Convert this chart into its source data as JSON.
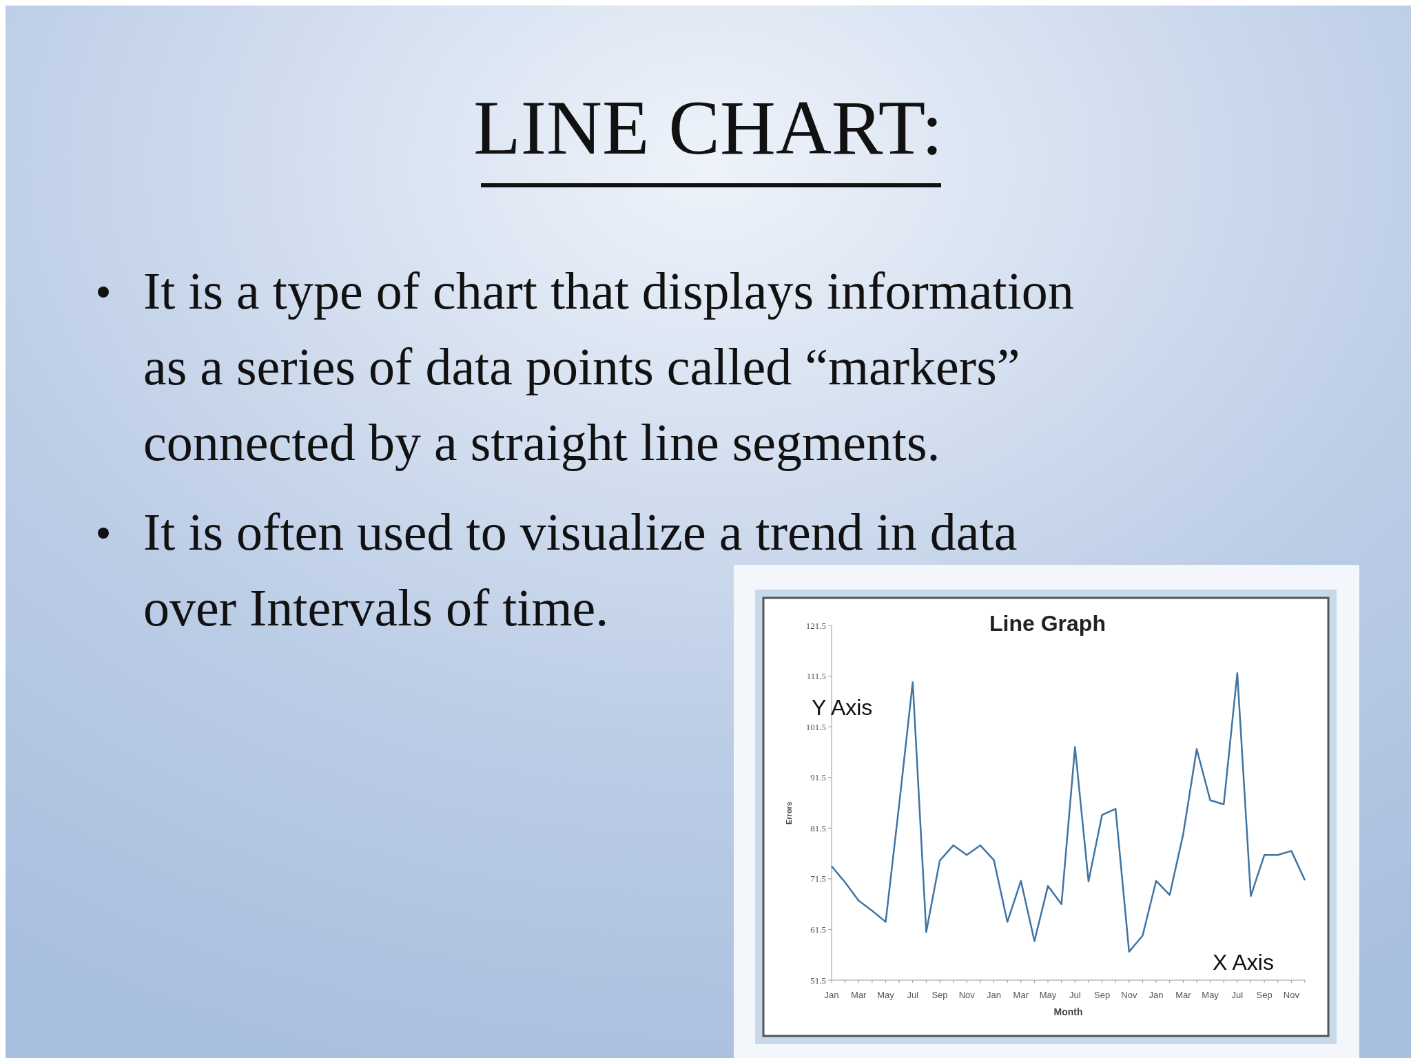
{
  "chart_data": {
    "type": "line",
    "title": "Line Graph",
    "xlabel": "Month",
    "ylabel": "Errors",
    "categories": [
      "Jan",
      null,
      "Mar",
      null,
      "May",
      null,
      "Jul",
      null,
      "Sep",
      null,
      "Nov",
      null,
      "Jan",
      null,
      "Mar",
      null,
      "May",
      null,
      "Jul",
      null,
      "Sep",
      null,
      "Nov",
      null,
      "Jan",
      null,
      "Mar",
      null,
      "May",
      null,
      "Jul",
      null,
      "Sep",
      null,
      "Nov",
      null
    ],
    "series": [
      {
        "color": "#3f74a3",
        "values": [
          74.0,
          70.8,
          67.2,
          65.2,
          63.0,
          86.2,
          110.3,
          61.0,
          75.1,
          78.1,
          76.2,
          78.1,
          75.2,
          63.0,
          71.1,
          59.2,
          70.1,
          66.5,
          97.5,
          71.0,
          84.1,
          85.3,
          57.1,
          60.3,
          71.1,
          68.3,
          80.3,
          97.1,
          87.0,
          86.2,
          112.1,
          68.1,
          76.2,
          76.2,
          77.0,
          71.2
        ]
      }
    ],
    "ylim": [
      51.5,
      121.5
    ],
    "yticks": [
      51.5,
      61.5,
      71.5,
      81.5,
      91.5,
      101.5,
      111.5,
      121.5
    ],
    "annotations": [
      "LINE CHART:",
      "It is a type of chart that displays information as a series of data points called “markers” connected by a straight line segments.",
      "It is often used to visualize a trend in data over Intervals of time.",
      "Y Axis",
      "X Axis"
    ]
  }
}
